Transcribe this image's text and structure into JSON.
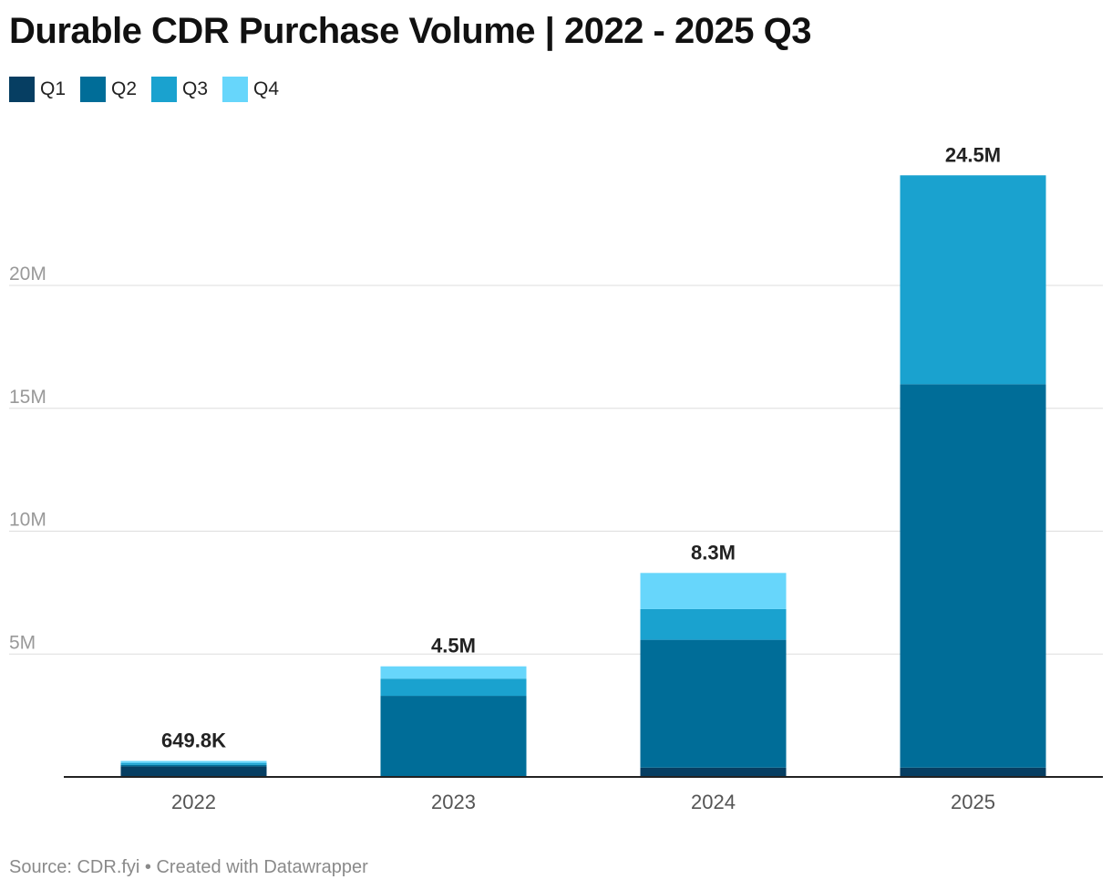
{
  "title": "Durable CDR Purchase Volume | 2022 - 2025 Q3",
  "legend": [
    {
      "label": "Q1",
      "color": "#063e62"
    },
    {
      "label": "Q2",
      "color": "#006d98"
    },
    {
      "label": "Q3",
      "color": "#1aa2cf"
    },
    {
      "label": "Q4",
      "color": "#67d6fb"
    }
  ],
  "chart_data": {
    "type": "bar",
    "stacked": true,
    "title": "Durable CDR Purchase Volume | 2022 - 2025 Q3",
    "categories": [
      "2022",
      "2023",
      "2024",
      "2025"
    ],
    "series": [
      {
        "name": "Q1",
        "values": [
          430000,
          0,
          380000,
          380000
        ]
      },
      {
        "name": "Q2",
        "values": [
          60000,
          3300000,
          5200000,
          15600000
        ]
      },
      {
        "name": "Q3",
        "values": [
          80000,
          700000,
          1250000,
          8500000
        ]
      },
      {
        "name": "Q4",
        "values": [
          79800,
          500000,
          1470000,
          0
        ]
      }
    ],
    "totals": [
      "649.8K",
      "4.5M",
      "8.3M",
      "24.5M"
    ],
    "y_ticks": [
      {
        "value": 5000000,
        "label": "5M"
      },
      {
        "value": 10000000,
        "label": "10M"
      },
      {
        "value": 15000000,
        "label": "15M"
      },
      {
        "value": 20000000,
        "label": "20M"
      }
    ],
    "ylim": [
      0,
      26000000
    ],
    "xlabel": "",
    "ylabel": "",
    "grid": true
  },
  "source": "Source: CDR.fyi • Created with Datawrapper"
}
